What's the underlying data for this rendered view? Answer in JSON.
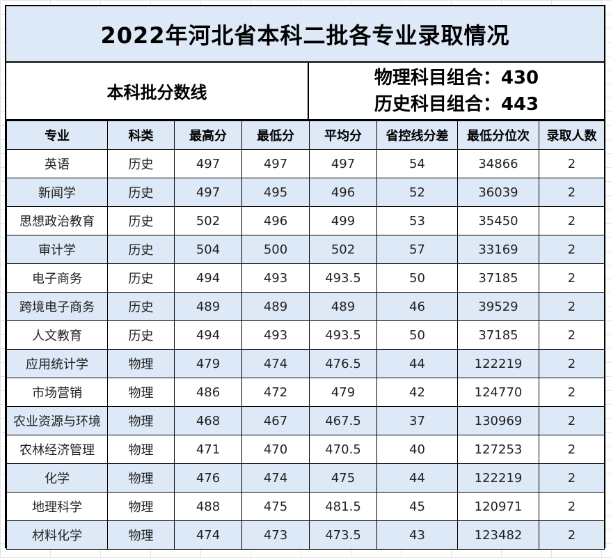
{
  "title": "2022年河北省本科二批各专业录取情况",
  "batch_label": "本科批分数线",
  "cutoffs": [
    {
      "label": "物理科目组合：",
      "value": "430"
    },
    {
      "label": "历史科目组合：",
      "value": "443"
    }
  ],
  "headers": [
    "专业",
    "科类",
    "最高分",
    "最低分",
    "平均分",
    "省控线分差",
    "最低分位次",
    "录取人数"
  ],
  "rows": [
    [
      "英语",
      "历史",
      "497",
      "497",
      "497",
      "54",
      "34866",
      "2"
    ],
    [
      "新闻学",
      "历史",
      "497",
      "495",
      "496",
      "52",
      "36039",
      "2"
    ],
    [
      "思想政治教育",
      "历史",
      "502",
      "496",
      "499",
      "53",
      "35450",
      "2"
    ],
    [
      "审计学",
      "历史",
      "504",
      "500",
      "502",
      "57",
      "33169",
      "2"
    ],
    [
      "电子商务",
      "历史",
      "494",
      "493",
      "493.5",
      "50",
      "37185",
      "2"
    ],
    [
      "跨境电子商务",
      "历史",
      "489",
      "489",
      "489",
      "46",
      "39529",
      "2"
    ],
    [
      "人文教育",
      "历史",
      "494",
      "493",
      "493.5",
      "50",
      "37185",
      "2"
    ],
    [
      "应用统计学",
      "物理",
      "479",
      "474",
      "476.5",
      "44",
      "122219",
      "2"
    ],
    [
      "市场营销",
      "物理",
      "486",
      "472",
      "479",
      "42",
      "124770",
      "2"
    ],
    [
      "农业资源与环境",
      "物理",
      "468",
      "467",
      "467.5",
      "37",
      "130969",
      "2"
    ],
    [
      "农林经济管理",
      "物理",
      "471",
      "470",
      "470.5",
      "40",
      "127253",
      "2"
    ],
    [
      "化学",
      "物理",
      "476",
      "474",
      "475",
      "44",
      "122219",
      "2"
    ],
    [
      "地理科学",
      "物理",
      "488",
      "475",
      "481.5",
      "45",
      "120971",
      "2"
    ],
    [
      "材料化学",
      "物理",
      "474",
      "473",
      "473.5",
      "43",
      "123482",
      "2"
    ]
  ]
}
